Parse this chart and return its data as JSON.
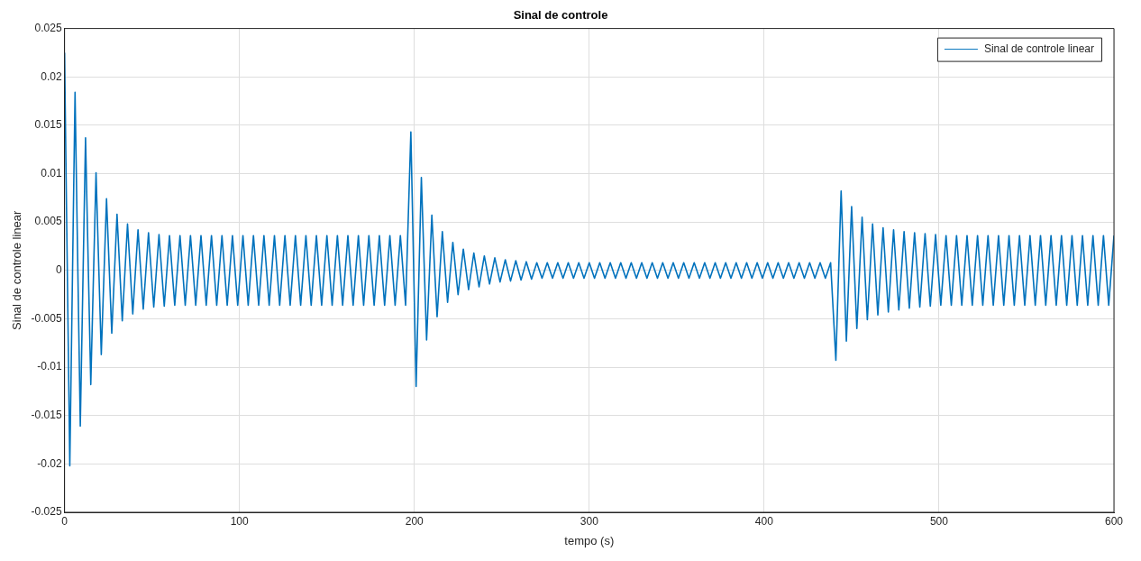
{
  "chart_data": {
    "type": "line",
    "title": "Sinal de controle",
    "xlabel": "tempo (s)",
    "ylabel": "Sinal de controle linear",
    "x": [
      0,
      3,
      6,
      9,
      12,
      15,
      18,
      21,
      24,
      27,
      30,
      33,
      36,
      39,
      42,
      45,
      48,
      51,
      54,
      57,
      60,
      63,
      66,
      69,
      72,
      75,
      78,
      81,
      84,
      87,
      90,
      93,
      96,
      99,
      102,
      105,
      108,
      111,
      114,
      117,
      120,
      123,
      126,
      129,
      132,
      135,
      138,
      141,
      144,
      147,
      150,
      153,
      156,
      159,
      162,
      165,
      168,
      171,
      174,
      177,
      180,
      183,
      186,
      189,
      192,
      195,
      198,
      201,
      204,
      207,
      210,
      213,
      216,
      219,
      222,
      225,
      228,
      231,
      234,
      237,
      240,
      243,
      246,
      249,
      252,
      255,
      258,
      261,
      264,
      267,
      270,
      273,
      276,
      279,
      282,
      285,
      288,
      291,
      294,
      297,
      300,
      303,
      306,
      309,
      312,
      315,
      318,
      321,
      324,
      327,
      330,
      333,
      336,
      339,
      342,
      345,
      348,
      351,
      354,
      357,
      360,
      363,
      366,
      369,
      372,
      375,
      378,
      381,
      384,
      387,
      390,
      393,
      396,
      399,
      402,
      405,
      408,
      411,
      414,
      417,
      420,
      423,
      426,
      429,
      432,
      435,
      438,
      441,
      444,
      447,
      450,
      453,
      456,
      459,
      462,
      465,
      468,
      471,
      474,
      477,
      480,
      483,
      486,
      489,
      492,
      495,
      498,
      501,
      504,
      507,
      510,
      513,
      516,
      519,
      522,
      525,
      528,
      531,
      534,
      537,
      540,
      543,
      546,
      549,
      552,
      555,
      558,
      561,
      564,
      567,
      570,
      573,
      576,
      579,
      582,
      585,
      588,
      591,
      594,
      597,
      600
    ],
    "series": [
      {
        "name": "Sinal de controle linear",
        "color": "#0072bd",
        "values": [
          0.0225,
          -0.0202,
          0.0184,
          -0.0161,
          0.0137,
          -0.0118,
          0.0101,
          -0.0087,
          0.0074,
          -0.0065,
          0.0058,
          -0.0052,
          0.0048,
          -0.0045,
          0.0042,
          -0.004,
          0.0039,
          -0.0038,
          0.0037,
          -0.0037,
          0.0036,
          -0.0036,
          0.0036,
          -0.0036,
          0.0036,
          -0.0036,
          0.0036,
          -0.0036,
          0.0036,
          -0.0036,
          0.0036,
          -0.0036,
          0.0036,
          -0.0036,
          0.0036,
          -0.0036,
          0.0036,
          -0.0036,
          0.0036,
          -0.0036,
          0.0036,
          -0.0036,
          0.0036,
          -0.0036,
          0.0036,
          -0.0036,
          0.0036,
          -0.0036,
          0.0036,
          -0.0036,
          0.0036,
          -0.0036,
          0.0036,
          -0.0036,
          0.0036,
          -0.0036,
          0.0036,
          -0.0036,
          0.0036,
          -0.0036,
          0.0036,
          -0.0036,
          0.0036,
          -0.0036,
          0.0036,
          -0.0036,
          0.0143,
          -0.012,
          0.0096,
          -0.0072,
          0.0057,
          -0.0048,
          0.004,
          -0.0033,
          0.0029,
          -0.0025,
          0.0022,
          -0.002,
          0.0018,
          -0.0017,
          0.0015,
          -0.0014,
          0.0013,
          -0.0012,
          0.0011,
          -0.0011,
          0.001,
          -0.001,
          0.0009,
          -0.0009,
          0.0008,
          -0.0008,
          0.0008,
          -0.0008,
          0.0008,
          -0.0008,
          0.0008,
          -0.0008,
          0.0008,
          -0.0008,
          0.0008,
          -0.0008,
          0.0008,
          -0.0008,
          0.0008,
          -0.0008,
          0.0008,
          -0.0008,
          0.0008,
          -0.0008,
          0.0008,
          -0.0008,
          0.0008,
          -0.0008,
          0.0008,
          -0.0008,
          0.0008,
          -0.0008,
          0.0008,
          -0.0008,
          0.0008,
          -0.0008,
          0.0008,
          -0.0008,
          0.0008,
          -0.0008,
          0.0008,
          -0.0008,
          0.0008,
          -0.0008,
          0.0008,
          -0.0008,
          0.0008,
          -0.0008,
          0.0008,
          -0.0008,
          0.0008,
          -0.0008,
          0.0008,
          -0.0008,
          0.0008,
          -0.0008,
          0.0008,
          -0.0008,
          0.0008,
          -0.0008,
          0.0008,
          -0.0093,
          0.0082,
          -0.0073,
          0.0066,
          -0.006,
          0.0055,
          -0.0051,
          0.0048,
          -0.0046,
          0.0044,
          -0.0043,
          0.0042,
          -0.0041,
          0.004,
          -0.0039,
          0.0039,
          -0.0038,
          0.0038,
          -0.0037,
          0.0037,
          -0.0036,
          0.0036,
          -0.0036,
          0.0036,
          -0.0036,
          0.0036,
          -0.0036,
          0.0036,
          -0.0036,
          0.0036,
          -0.0036,
          0.0036,
          -0.0036,
          0.0036,
          -0.0036,
          0.0036,
          -0.0036,
          0.0036,
          -0.0036,
          0.0036,
          -0.0036,
          0.0036,
          -0.0036,
          0.0036,
          -0.0036,
          0.0036,
          -0.0036,
          0.0036,
          -0.0036,
          0.0036,
          -0.0036,
          0.0036,
          -0.0036,
          0.0036
        ]
      }
    ],
    "xlim": [
      0,
      600
    ],
    "xticks": [
      0,
      100,
      200,
      300,
      400,
      500,
      600
    ],
    "ylim": [
      -0.025,
      0.025
    ],
    "yticks": [
      -0.025,
      -0.02,
      -0.015,
      -0.01,
      -0.005,
      0,
      0.005,
      0.01,
      0.015,
      0.02,
      0.025
    ],
    "grid": true,
    "legend": "top right",
    "marker": "none",
    "line_style": "solid"
  }
}
